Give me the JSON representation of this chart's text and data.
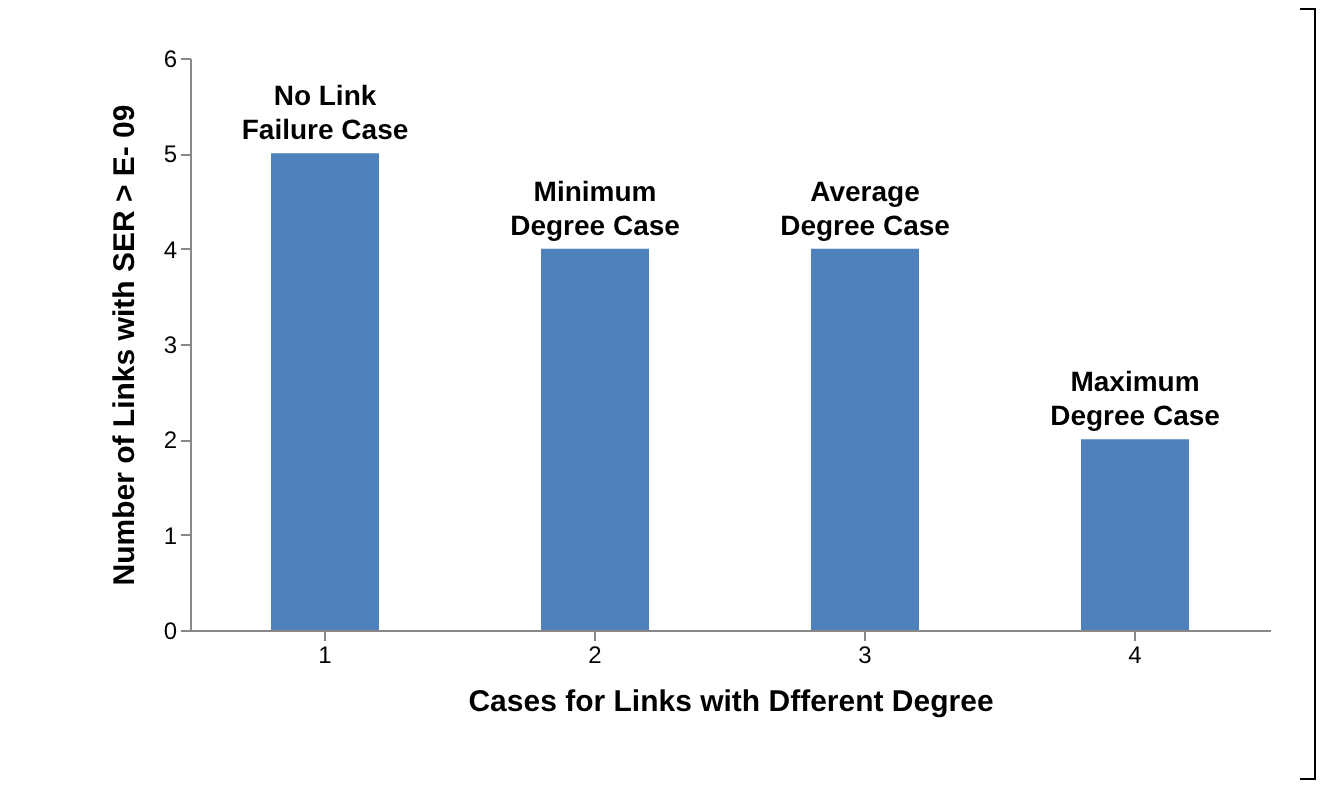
{
  "chart_data": {
    "type": "bar",
    "xlabel": "Cases for Links with Dfferent Degree",
    "ylabel": "Number of Links with SER > E- 09",
    "categories": [
      "1",
      "2",
      "3",
      "4"
    ],
    "values": [
      5,
      4,
      4,
      2
    ],
    "color": "#4f81bd",
    "ylim": [
      0,
      6
    ],
    "yticks": [
      0,
      1,
      2,
      3,
      4,
      5,
      6
    ],
    "grid": false,
    "annotations": [
      {
        "text": "No Link\nFailure Case",
        "x": "1",
        "y": 5
      },
      {
        "text": "Minimum\nDegree Case",
        "x": "2",
        "y": 4
      },
      {
        "text": "Average\nDegree Case",
        "x": "3",
        "y": 4
      },
      {
        "text": "Maximum\nDegree Case",
        "x": "4",
        "y": 2
      }
    ]
  }
}
